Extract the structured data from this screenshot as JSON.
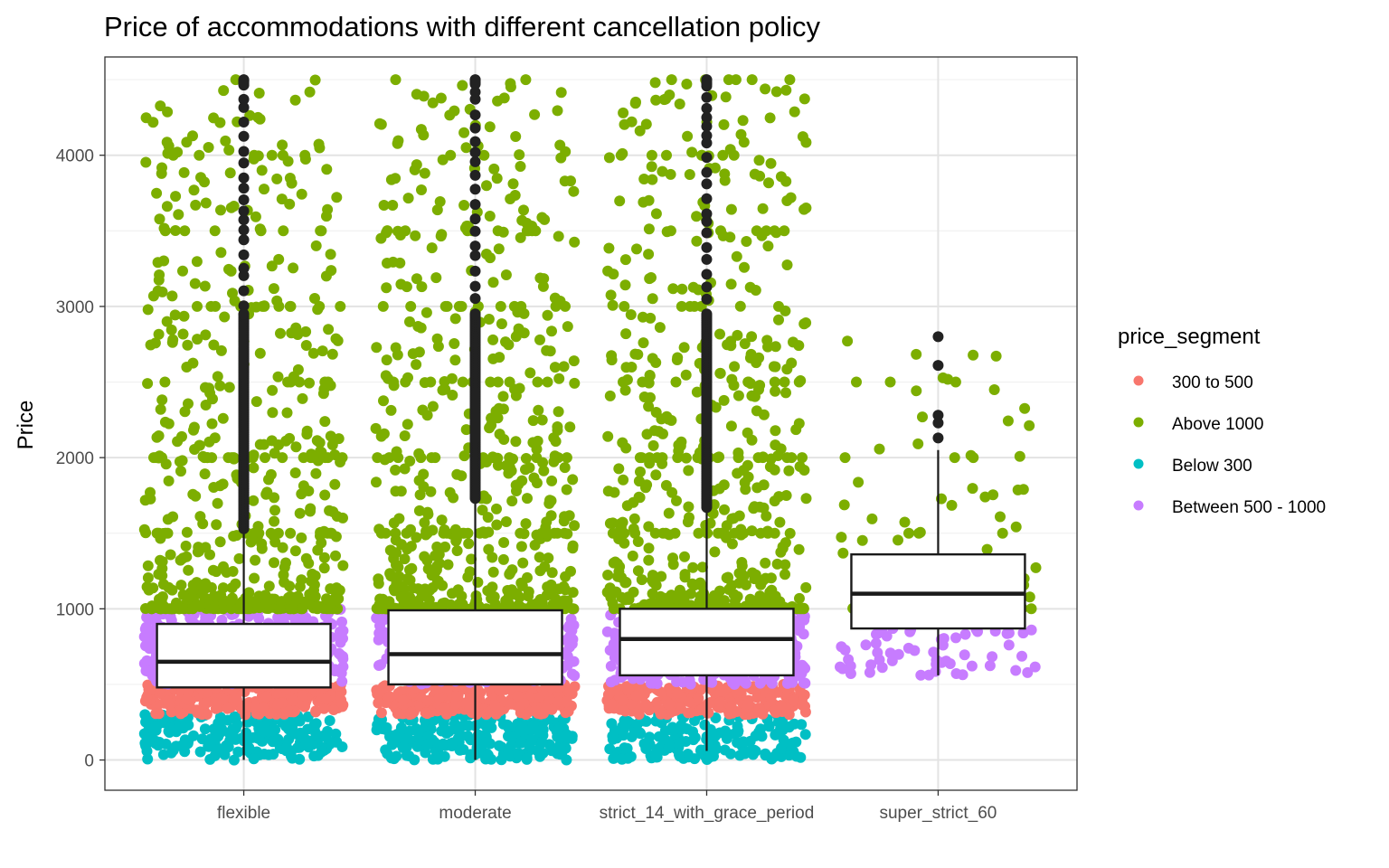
{
  "chart_data": {
    "type": "box",
    "title": "Price of accommodations with different cancellation policy",
    "xlabel": "",
    "ylabel": "Price",
    "ylim": [
      -200,
      4650
    ],
    "yticks": [
      0,
      1000,
      2000,
      3000,
      4000
    ],
    "grid": true,
    "categories": [
      "flexible",
      "moderate",
      "strict_14_with_grace_period",
      "super_strict_60"
    ],
    "boxes": [
      {
        "category": "flexible",
        "lower_whisker": 0,
        "q1": 480,
        "median": 650,
        "q3": 900,
        "upper_whisker": 1520,
        "outlier_min": 1530,
        "outlier_max": 4500
      },
      {
        "category": "moderate",
        "lower_whisker": 0,
        "q1": 500,
        "median": 700,
        "q3": 990,
        "upper_whisker": 1720,
        "outlier_min": 1730,
        "outlier_max": 4500
      },
      {
        "category": "strict_14_with_grace_period",
        "lower_whisker": 60,
        "q1": 560,
        "median": 800,
        "q3": 1000,
        "upper_whisker": 1660,
        "outlier_min": 1670,
        "outlier_max": 4500
      },
      {
        "category": "super_strict_60",
        "lower_whisker": 560,
        "q1": 870,
        "median": 1100,
        "q3": 1360,
        "upper_whisker": 2050,
        "outliers": [
          2130,
          2230,
          2280,
          2610,
          2800
        ]
      }
    ],
    "series": [
      {
        "name": "300 to 500",
        "color": "#F8766D",
        "range": [
          300,
          500
        ]
      },
      {
        "name": "Above 1000",
        "color": "#7CAE00",
        "range": [
          1000,
          4500
        ]
      },
      {
        "name": "Below 300",
        "color": "#00BFC4",
        "range": [
          0,
          300
        ]
      },
      {
        "name": "Between 500 - 1000",
        "color": "#C77CFF",
        "range": [
          500,
          1000
        ]
      }
    ],
    "legend": {
      "title": "price_segment",
      "position": "right",
      "items": [
        "300 to 500",
        "Above 1000",
        "Below 300",
        "Between 500 - 1000"
      ]
    },
    "jitter": [
      {
        "category": "flexible",
        "points_per_series": [
          260,
          560,
          200,
          340
        ],
        "range_above_1000": [
          1000,
          4500
        ]
      },
      {
        "category": "moderate",
        "points_per_series": [
          260,
          560,
          200,
          340
        ],
        "range_above_1000": [
          1000,
          4500
        ]
      },
      {
        "category": "strict_14_with_grace_period",
        "points_per_series": [
          260,
          560,
          180,
          340
        ],
        "range_above_1000": [
          1000,
          4500
        ]
      },
      {
        "category": "super_strict_60",
        "points_per_series": [
          0,
          70,
          0,
          60
        ],
        "range_above_1000": [
          1000,
          2800
        ]
      }
    ]
  }
}
